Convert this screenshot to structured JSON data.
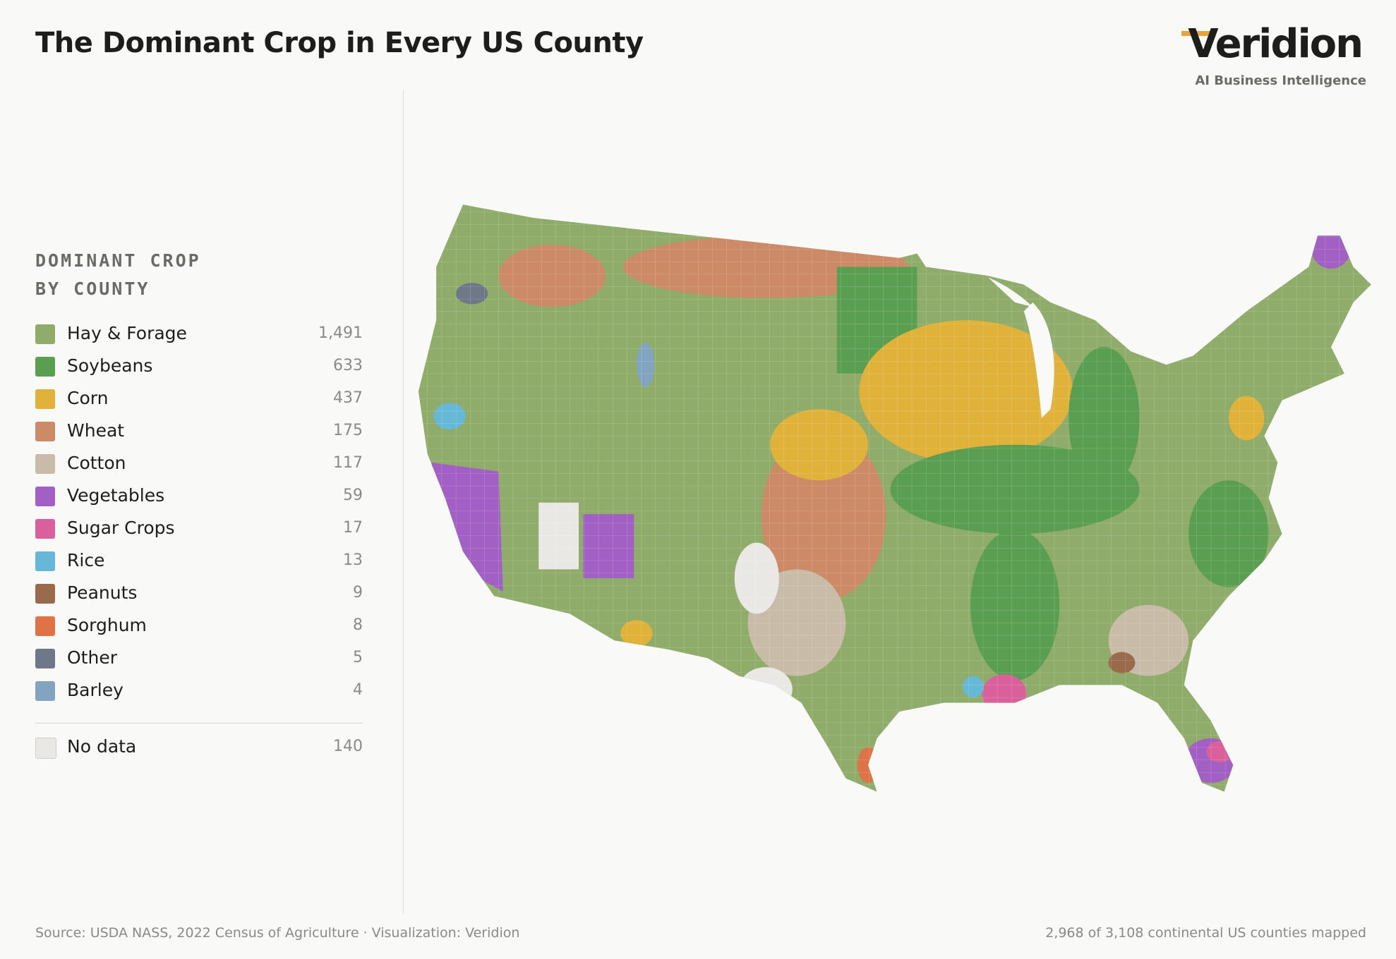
{
  "header": {
    "title": "The Dominant Crop in Every US County",
    "logo": "Veridion",
    "tagline": "AI Business Intelligence"
  },
  "legend": {
    "heading": [
      "DOMINANT CROP",
      "BY COUNTY"
    ],
    "items": [
      {
        "label": "Hay & Forage",
        "color": "#8fac6a",
        "count": "1,491"
      },
      {
        "label": "Soybeans",
        "color": "#5a9e52",
        "count": "633"
      },
      {
        "label": "Corn",
        "color": "#e0b23a",
        "count": "437"
      },
      {
        "label": "Wheat",
        "color": "#cd8a66",
        "count": "175"
      },
      {
        "label": "Cotton",
        "color": "#c8bba8",
        "count": "117"
      },
      {
        "label": "Vegetables",
        "color": "#a260c4",
        "count": "59"
      },
      {
        "label": "Sugar Crops",
        "color": "#d9609a",
        "count": "17"
      },
      {
        "label": "Rice",
        "color": "#66b8d6",
        "count": "13"
      },
      {
        "label": "Peanuts",
        "color": "#9a6a4c",
        "count": "9"
      },
      {
        "label": "Sorghum",
        "color": "#dd7346",
        "count": "8"
      },
      {
        "label": "Other",
        "color": "#6e7888",
        "count": "5"
      },
      {
        "label": "Barley",
        "color": "#82a4c0",
        "count": "4"
      }
    ],
    "no_data": {
      "label": "No data",
      "color": "#e9e8e5",
      "count": "140"
    }
  },
  "footer": {
    "source": "Source: USDA NASS, 2022 Census of Agriculture · Visualization: Veridion",
    "coverage": "2,968 of 3,108 continental US counties mapped"
  }
}
